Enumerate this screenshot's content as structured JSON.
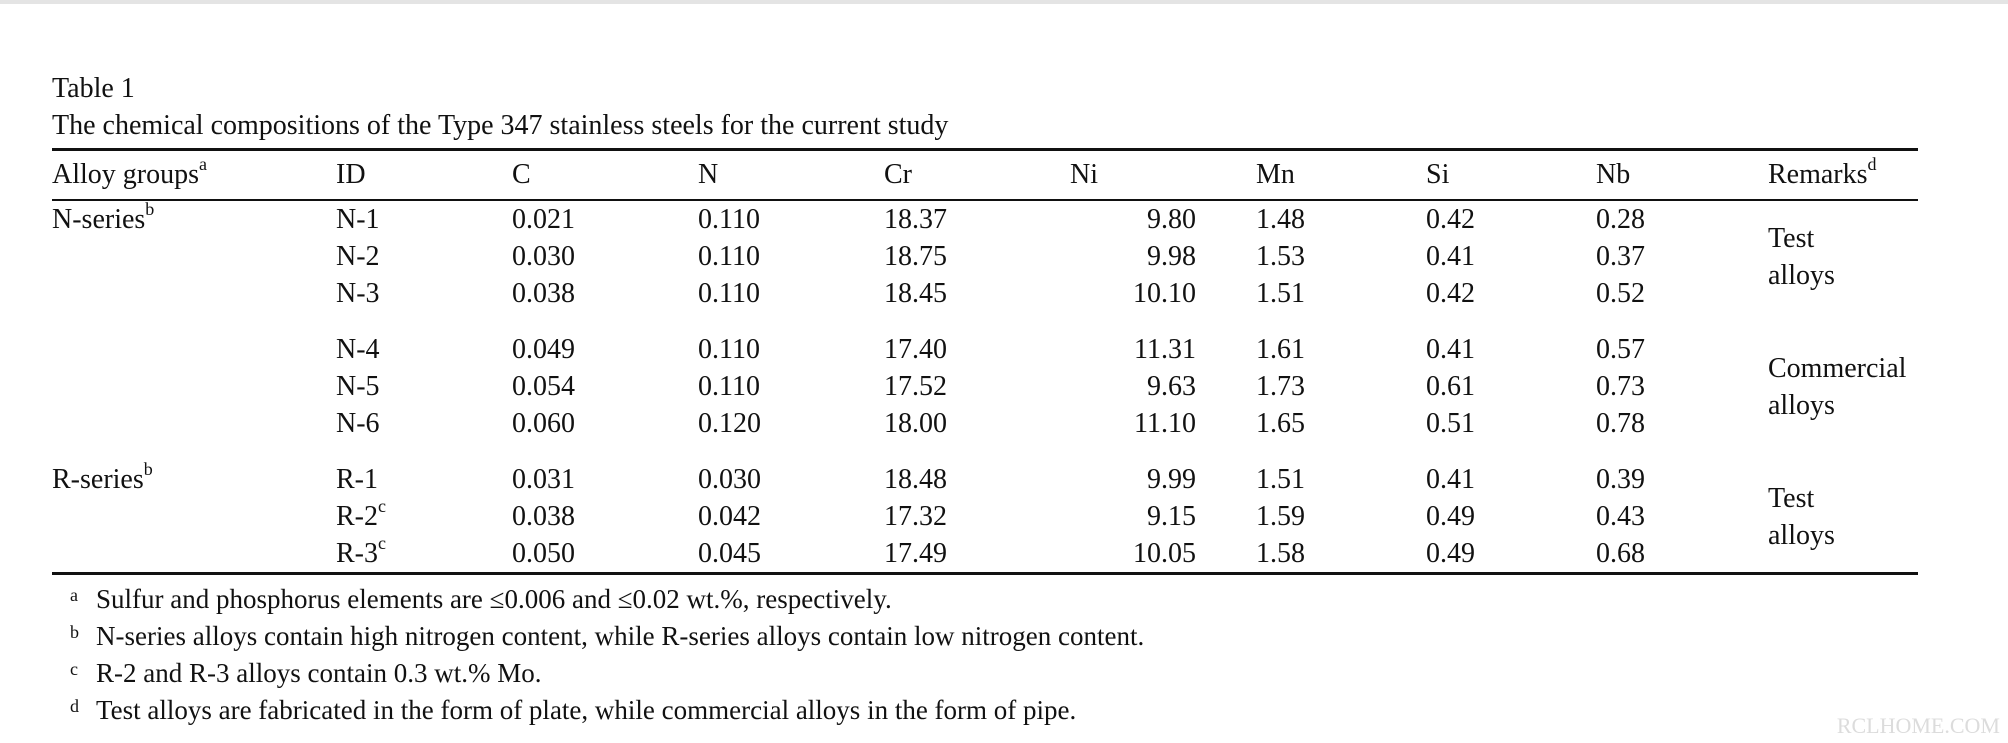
{
  "table": {
    "label": "Table 1",
    "title": "The chemical compositions of the Type 347 stainless steels for the current study",
    "headers": {
      "group": "Alloy groups",
      "group_sup": "a",
      "id": "ID",
      "c": "C",
      "n": "N",
      "cr": "Cr",
      "ni": "Ni",
      "mn": "Mn",
      "si": "Si",
      "nb": "Nb",
      "remarks": "Remarks",
      "remarks_sup": "d"
    },
    "groups": [
      {
        "name": "N-series",
        "sup": "b"
      },
      {
        "name": "R-series",
        "sup": "b"
      }
    ],
    "rows": [
      {
        "id": "N-1",
        "id_sup": "",
        "c": "0.021",
        "n": "0.110",
        "cr": "18.37",
        "ni": "9.80",
        "mn": "1.48",
        "si": "0.42",
        "nb": "0.28"
      },
      {
        "id": "N-2",
        "id_sup": "",
        "c": "0.030",
        "n": "0.110",
        "cr": "18.75",
        "ni": "9.98",
        "mn": "1.53",
        "si": "0.41",
        "nb": "0.37"
      },
      {
        "id": "N-3",
        "id_sup": "",
        "c": "0.038",
        "n": "0.110",
        "cr": "18.45",
        "ni": "10.10",
        "mn": "1.51",
        "si": "0.42",
        "nb": "0.52"
      },
      {
        "id": "N-4",
        "id_sup": "",
        "c": "0.049",
        "n": "0.110",
        "cr": "17.40",
        "ni": "11.31",
        "mn": "1.61",
        "si": "0.41",
        "nb": "0.57"
      },
      {
        "id": "N-5",
        "id_sup": "",
        "c": "0.054",
        "n": "0.110",
        "cr": "17.52",
        "ni": "9.63",
        "mn": "1.73",
        "si": "0.61",
        "nb": "0.73"
      },
      {
        "id": "N-6",
        "id_sup": "",
        "c": "0.060",
        "n": "0.120",
        "cr": "18.00",
        "ni": "11.10",
        "mn": "1.65",
        "si": "0.51",
        "nb": "0.78"
      },
      {
        "id": "R-1",
        "id_sup": "",
        "c": "0.031",
        "n": "0.030",
        "cr": "18.48",
        "ni": "9.99",
        "mn": "1.51",
        "si": "0.41",
        "nb": "0.39"
      },
      {
        "id": "R-2",
        "id_sup": "c",
        "c": "0.038",
        "n": "0.042",
        "cr": "17.32",
        "ni": "9.15",
        "mn": "1.59",
        "si": "0.49",
        "nb": "0.43"
      },
      {
        "id": "R-3",
        "id_sup": "c",
        "c": "0.050",
        "n": "0.045",
        "cr": "17.49",
        "ni": "10.05",
        "mn": "1.58",
        "si": "0.49",
        "nb": "0.68"
      }
    ],
    "remarks": [
      {
        "line1": "Test",
        "line2": "alloys"
      },
      {
        "line1": "Commercial",
        "line2": "alloys"
      },
      {
        "line1": "Test",
        "line2": "alloys"
      }
    ],
    "footnotes": [
      {
        "mark": "a",
        "text": "Sulfur and phosphorus elements are ≤0.006 and ≤0.02 wt.%, respectively."
      },
      {
        "mark": "b",
        "text": "N-series alloys contain high nitrogen content, while R-series alloys contain low nitrogen content."
      },
      {
        "mark": "c",
        "text": "R-2 and R-3 alloys contain 0.3 wt.% Mo."
      },
      {
        "mark": "d",
        "text": "Test alloys are fabricated in the form of plate, while commercial alloys in the form of pipe."
      }
    ]
  },
  "watermark": "RCLHOME.COM"
}
